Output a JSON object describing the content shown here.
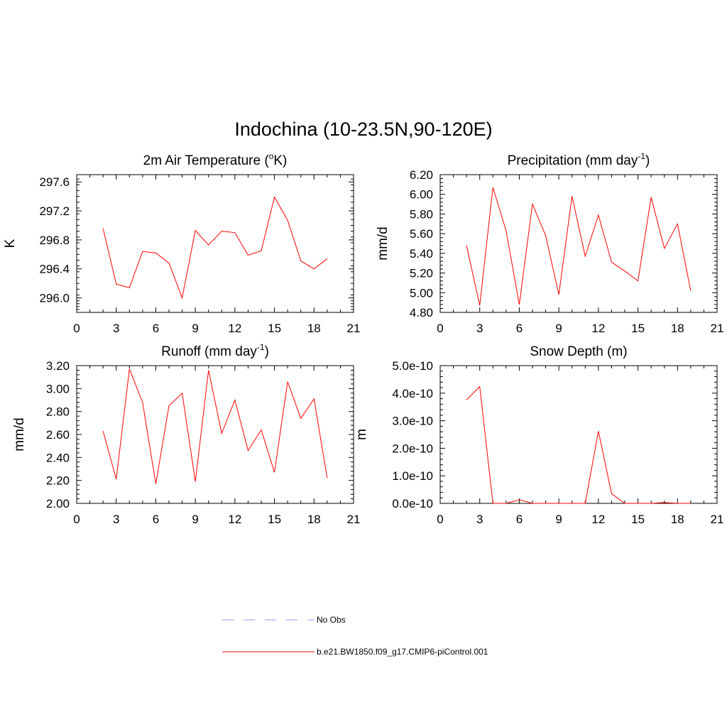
{
  "title": "Indochina (10-23.5N,90-120E)",
  "colors": {
    "series": "#ff0000",
    "obs": "#9999ff",
    "axis": "#000000"
  },
  "chart_data": [
    {
      "id": "temp",
      "type": "line",
      "title_parts": [
        "2m Air Temperature (",
        "o",
        "K)"
      ],
      "title_style": "sup",
      "ylabel": "K",
      "xlim": [
        0,
        21
      ],
      "xticks": [
        0,
        3,
        6,
        9,
        12,
        15,
        18,
        21
      ],
      "ylim": [
        295.8,
        297.7
      ],
      "yticks": [
        296.0,
        296.4,
        296.8,
        297.2,
        297.6
      ],
      "ytick_labels": [
        "296.0",
        "296.4",
        "296.8",
        "297.2",
        "297.6"
      ],
      "series": [
        {
          "name": "b.e21.BW1850.f09_g17.CMIP6-piControl.001",
          "x": [
            2,
            3,
            4,
            5,
            6,
            7,
            8,
            9,
            10,
            11,
            12,
            13,
            14,
            15,
            16,
            17,
            18,
            19
          ],
          "y": [
            296.96,
            296.19,
            296.14,
            296.64,
            296.62,
            296.48,
            296.0,
            296.93,
            296.73,
            296.92,
            296.9,
            296.59,
            296.65,
            297.39,
            297.07,
            296.51,
            296.4,
            296.54
          ]
        }
      ]
    },
    {
      "id": "precip",
      "type": "line",
      "title_parts": [
        "Precipitation (mm day",
        "-1",
        ")"
      ],
      "title_style": "sup",
      "ylabel": "mm/d",
      "xlim": [
        0,
        21
      ],
      "xticks": [
        0,
        3,
        6,
        9,
        12,
        15,
        18,
        21
      ],
      "ylim": [
        4.8,
        6.2
      ],
      "yticks": [
        4.8,
        5.0,
        5.2,
        5.4,
        5.6,
        5.8,
        6.0,
        6.2
      ],
      "ytick_labels": [
        "4.80",
        "5.00",
        "5.20",
        "5.40",
        "5.60",
        "5.80",
        "6.00",
        "6.20"
      ],
      "series": [
        {
          "name": "b.e21.BW1850.f09_g17.CMIP6-piControl.001",
          "x": [
            2,
            3,
            4,
            5,
            6,
            7,
            8,
            9,
            10,
            11,
            12,
            13,
            14,
            15,
            16,
            17,
            18,
            19
          ],
          "y": [
            5.48,
            4.87,
            6.07,
            5.63,
            4.88,
            5.9,
            5.58,
            4.98,
            5.98,
            5.37,
            5.79,
            5.31,
            5.22,
            5.12,
            5.97,
            5.45,
            5.7,
            5.02
          ]
        }
      ]
    },
    {
      "id": "runoff",
      "type": "line",
      "title_parts": [
        "Runoff (mm day",
        "-1",
        ")"
      ],
      "title_style": "sup",
      "ylabel": "mm/d",
      "xlim": [
        0,
        21
      ],
      "xticks": [
        0,
        3,
        6,
        9,
        12,
        15,
        18,
        21
      ],
      "ylim": [
        2.0,
        3.2
      ],
      "yticks": [
        2.0,
        2.2,
        2.4,
        2.6,
        2.8,
        3.0,
        3.2
      ],
      "ytick_labels": [
        "2.00",
        "2.20",
        "2.40",
        "2.60",
        "2.80",
        "3.00",
        "3.20"
      ],
      "series": [
        {
          "name": "b.e21.BW1850.f09_g17.CMIP6-piControl.001",
          "x": [
            2,
            3,
            4,
            5,
            6,
            7,
            8,
            9,
            10,
            11,
            12,
            13,
            14,
            15,
            16,
            17,
            18,
            19
          ],
          "y": [
            2.63,
            2.21,
            3.17,
            2.88,
            2.17,
            2.85,
            2.96,
            2.19,
            3.16,
            2.61,
            2.9,
            2.46,
            2.64,
            2.27,
            3.06,
            2.74,
            2.91,
            2.22
          ]
        }
      ]
    },
    {
      "id": "snow",
      "type": "line",
      "title_parts": [
        "Snow Depth (m)"
      ],
      "title_style": "plain",
      "ylabel": "m",
      "xlim": [
        0,
        21
      ],
      "xticks": [
        0,
        3,
        6,
        9,
        12,
        15,
        18,
        21
      ],
      "ylim": [
        0,
        5e-10
      ],
      "yticks": [
        0,
        1e-10,
        2e-10,
        3e-10,
        4e-10,
        5e-10
      ],
      "ytick_labels": [
        "0.0e-10",
        "1.0e-10",
        "2.0e-10",
        "3.0e-10",
        "4.0e-10",
        "5.0e-10"
      ],
      "series": [
        {
          "name": "b.e21.BW1850.f09_g17.CMIP6-piControl.001",
          "x": [
            2,
            3,
            4,
            5,
            6,
            7,
            8,
            9,
            10,
            11,
            12,
            13,
            14,
            15,
            16,
            17,
            18,
            19
          ],
          "y": [
            3.76e-10,
            4.24e-10,
            0,
            0,
            1.3e-11,
            0,
            0,
            0,
            0,
            0,
            2.62e-10,
            3.5e-11,
            0,
            0,
            0,
            3e-12,
            0,
            0
          ]
        }
      ]
    }
  ],
  "legend": {
    "items": [
      {
        "label": "No Obs",
        "style": "dashed"
      },
      {
        "label": "b.e21.BW1850.f09_g17.CMIP6-piControl.001",
        "style": "solid"
      }
    ]
  }
}
